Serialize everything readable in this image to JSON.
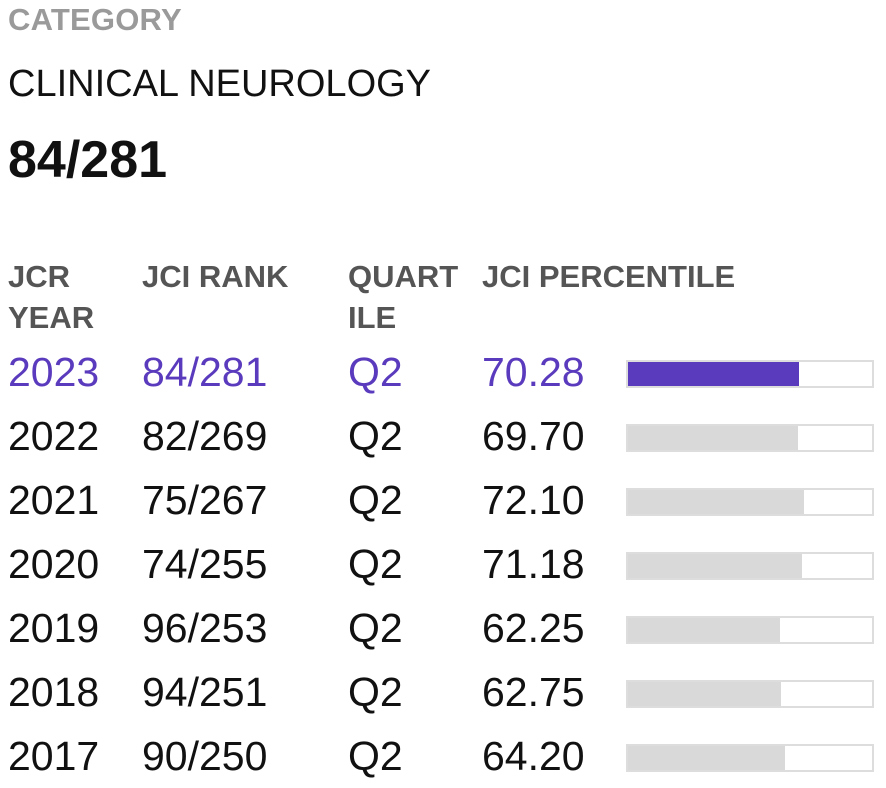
{
  "category": {
    "label": "CATEGORY",
    "name": "CLINICAL NEUROLOGY",
    "rank": "84/281"
  },
  "table": {
    "headers": {
      "year": "JCR\nYEAR",
      "rank": "JCI RANK",
      "quartile": "QUART\nILE",
      "percentile": "JCI PERCENTILE"
    },
    "rows": [
      {
        "year": "2023",
        "rank": "84/281",
        "quartile": "Q2",
        "percentile": "70.28",
        "value": 70.28
      },
      {
        "year": "2022",
        "rank": "82/269",
        "quartile": "Q2",
        "percentile": "69.70",
        "value": 69.7
      },
      {
        "year": "2021",
        "rank": "75/267",
        "quartile": "Q2",
        "percentile": "72.10",
        "value": 72.1
      },
      {
        "year": "2020",
        "rank": "74/255",
        "quartile": "Q2",
        "percentile": "71.18",
        "value": 71.18
      },
      {
        "year": "2019",
        "rank": "96/253",
        "quartile": "Q2",
        "percentile": "62.25",
        "value": 62.25
      },
      {
        "year": "2018",
        "rank": "94/251",
        "quartile": "Q2",
        "percentile": "62.75",
        "value": 62.75
      },
      {
        "year": "2017",
        "rank": "90/250",
        "quartile": "Q2",
        "percentile": "64.20",
        "value": 64.2
      }
    ]
  },
  "colors": {
    "accent": "#5b3bbd",
    "bar_track": "#d9d9d9",
    "label_gray": "#9a9a9a"
  }
}
